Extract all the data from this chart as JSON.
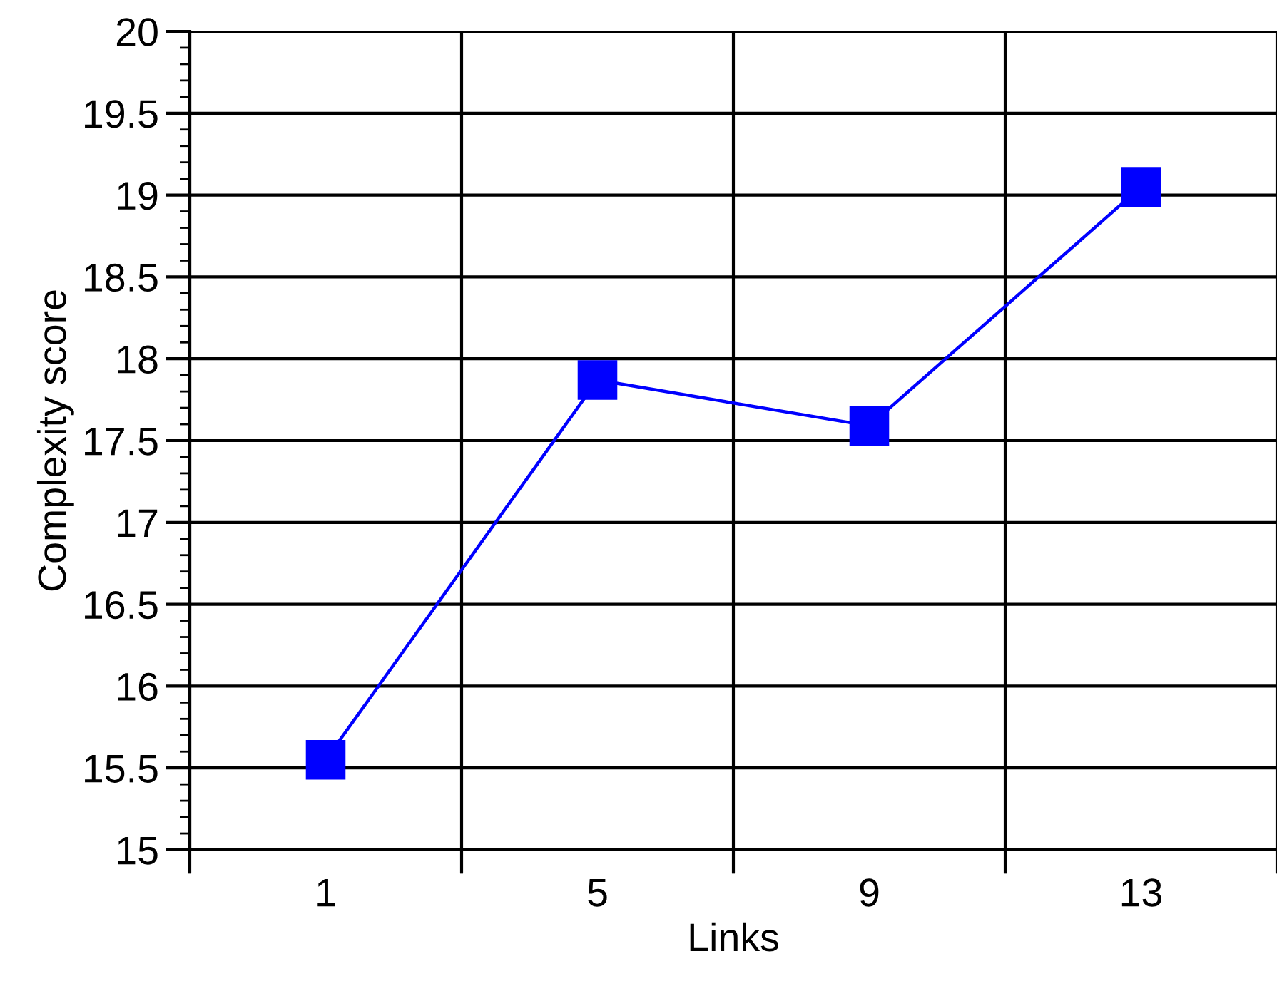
{
  "chart_data": {
    "type": "line",
    "xlabel": "Links",
    "ylabel": "Complexity score",
    "categories": [
      "1",
      "5",
      "9",
      "13"
    ],
    "series": [
      {
        "color": "#0000ff",
        "values": [
          15.55,
          17.87,
          17.59,
          19.05
        ]
      }
    ],
    "ylim": [
      15,
      20
    ],
    "yticks": [
      15,
      15.5,
      16,
      16.5,
      17,
      17.5,
      18,
      18.5,
      19,
      19.5,
      20
    ],
    "grid": true,
    "marker": "square",
    "line_style": "solid"
  }
}
